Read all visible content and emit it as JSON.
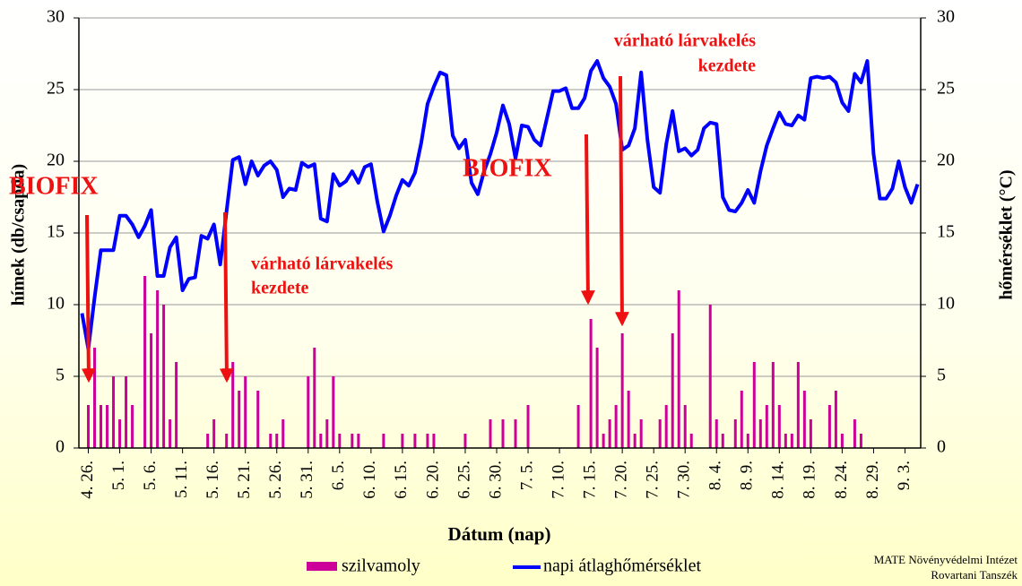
{
  "chart_data": {
    "type": "bar-line",
    "y_label": "hímek (db/csapda)",
    "y2_label": "hőmérséklet (°C)",
    "x_label": "Dátum (nap)",
    "categories": [
      null,
      "4. 26.",
      null,
      null,
      null,
      null,
      "5. 1.",
      null,
      null,
      null,
      null,
      "5. 6.",
      null,
      null,
      null,
      null,
      "5. 11.",
      null,
      null,
      null,
      null,
      "5. 16.",
      null,
      null,
      null,
      null,
      "5. 21.",
      null,
      null,
      null,
      null,
      "5. 26.",
      null,
      null,
      null,
      null,
      "5. 31.",
      null,
      null,
      null,
      null,
      "6. 5.",
      null,
      null,
      null,
      null,
      "6. 10.",
      null,
      null,
      null,
      null,
      "6. 15.",
      null,
      null,
      null,
      null,
      "6. 20.",
      null,
      null,
      null,
      null,
      "6. 25.",
      null,
      null,
      null,
      null,
      "6. 30.",
      null,
      null,
      null,
      null,
      "7. 5.",
      null,
      null,
      null,
      null,
      "7. 10.",
      null,
      null,
      null,
      null,
      "7. 15.",
      null,
      null,
      null,
      null,
      "7. 20.",
      null,
      null,
      null,
      null,
      "7. 25.",
      null,
      null,
      null,
      null,
      "7. 30.",
      null,
      null,
      null,
      null,
      "8. 4.",
      null,
      null,
      null,
      null,
      "8. 9.",
      null,
      null,
      null,
      null,
      "8. 14.",
      null,
      null,
      null,
      null,
      "8. 19.",
      null,
      null,
      null,
      null,
      "8. 24.",
      null,
      null,
      null,
      null,
      "8. 29.",
      null,
      null,
      null,
      null,
      "9. 3.",
      null,
      null
    ],
    "series": [
      {
        "name": "szilvamoly",
        "kind": "bar",
        "color": "#cc0099",
        "values": [
          0,
          3,
          7,
          3,
          3,
          5,
          2,
          5,
          3,
          0,
          12,
          8,
          11,
          10,
          2,
          6,
          0,
          0,
          0,
          0,
          1,
          2,
          0,
          1,
          6,
          4,
          5,
          0,
          4,
          0,
          1,
          1,
          2,
          0,
          0,
          0,
          5,
          7,
          1,
          2,
          5,
          1,
          0,
          1,
          1,
          0,
          0,
          0,
          1,
          0,
          0,
          1,
          0,
          1,
          0,
          1,
          1,
          0,
          0,
          0,
          0,
          1,
          0,
          0,
          0,
          2,
          0,
          2,
          0,
          2,
          0,
          3,
          0,
          0,
          0,
          0,
          0,
          0,
          0,
          3,
          0,
          9,
          7,
          1,
          2,
          3,
          8,
          4,
          1,
          2,
          0,
          0,
          2,
          3,
          8,
          11,
          3,
          1,
          0,
          0,
          10,
          2,
          1,
          0,
          2,
          4,
          1,
          6,
          2,
          3,
          6,
          3,
          1,
          1,
          6,
          4,
          2,
          0,
          0,
          3,
          4,
          1,
          0,
          2,
          1,
          0,
          0,
          0,
          0,
          0,
          0,
          0,
          0,
          0
        ]
      },
      {
        "name": "napi átlaghőmérséklet",
        "kind": "line",
        "axis": "y2",
        "color": "#0000ff",
        "values": [
          9.4,
          6.9,
          10.5,
          13.8,
          13.8,
          13.8,
          16.2,
          16.2,
          15.6,
          14.7,
          15.5,
          16.6,
          12.0,
          12.0,
          14.0,
          14.7,
          11.0,
          11.8,
          11.9,
          14.8,
          14.6,
          15.6,
          12.8,
          16.5,
          20.1,
          20.3,
          18.4,
          20.0,
          19.0,
          19.7,
          20.0,
          19.4,
          17.5,
          18.1,
          18.0,
          19.9,
          19.6,
          19.8,
          16.0,
          15.8,
          19.1,
          18.3,
          18.6,
          19.3,
          18.5,
          19.6,
          19.8,
          17.2,
          15.1,
          16.2,
          17.6,
          18.7,
          18.3,
          19.2,
          21.3,
          24.0,
          25.2,
          26.2,
          26.0,
          21.8,
          20.9,
          21.5,
          18.5,
          17.7,
          19.3,
          20.5,
          22.0,
          23.9,
          22.6,
          20.2,
          22.5,
          22.4,
          21.5,
          21.1,
          23.0,
          24.9,
          24.9,
          25.1,
          23.7,
          23.7,
          24.4,
          26.3,
          27.0,
          25.8,
          25.2,
          24.0,
          20.8,
          21.1,
          22.3,
          26.2,
          21.5,
          18.2,
          17.8,
          21.2,
          23.5,
          20.7,
          20.9,
          20.4,
          20.8,
          22.3,
          22.7,
          22.6,
          17.5,
          16.6,
          16.5,
          17.1,
          18.0,
          17.1,
          19.3,
          21.1,
          22.3,
          23.4,
          22.6,
          22.5,
          23.2,
          22.9,
          25.8,
          25.9,
          25.8,
          25.9,
          25.5,
          24.1,
          23.5,
          26.1,
          25.5,
          27.0,
          20.5,
          17.4,
          17.4,
          18.1,
          20.0,
          18.2,
          17.1,
          18.4
        ]
      }
    ],
    "ylim": [
      0,
      30
    ],
    "yticks": [
      0,
      5,
      10,
      15,
      20,
      25,
      30
    ],
    "y2lim": [
      0,
      30
    ],
    "y2ticks": [
      0,
      5,
      10,
      15,
      20,
      25,
      30
    ],
    "grid": true,
    "legend": "bottom",
    "annotations": [
      {
        "lines": [
          "BIOFIX"
        ]
      },
      {
        "lines": [
          "várható lárvakelés",
          "kezdete"
        ]
      },
      {
        "lines": [
          "BIOFIX"
        ]
      },
      {
        "lines": [
          "várható lárvakelés",
          "kezdete"
        ]
      }
    ],
    "source": [
      "MATE Növényvédelmi Intézet",
      "Rovartani Tanszék"
    ]
  }
}
